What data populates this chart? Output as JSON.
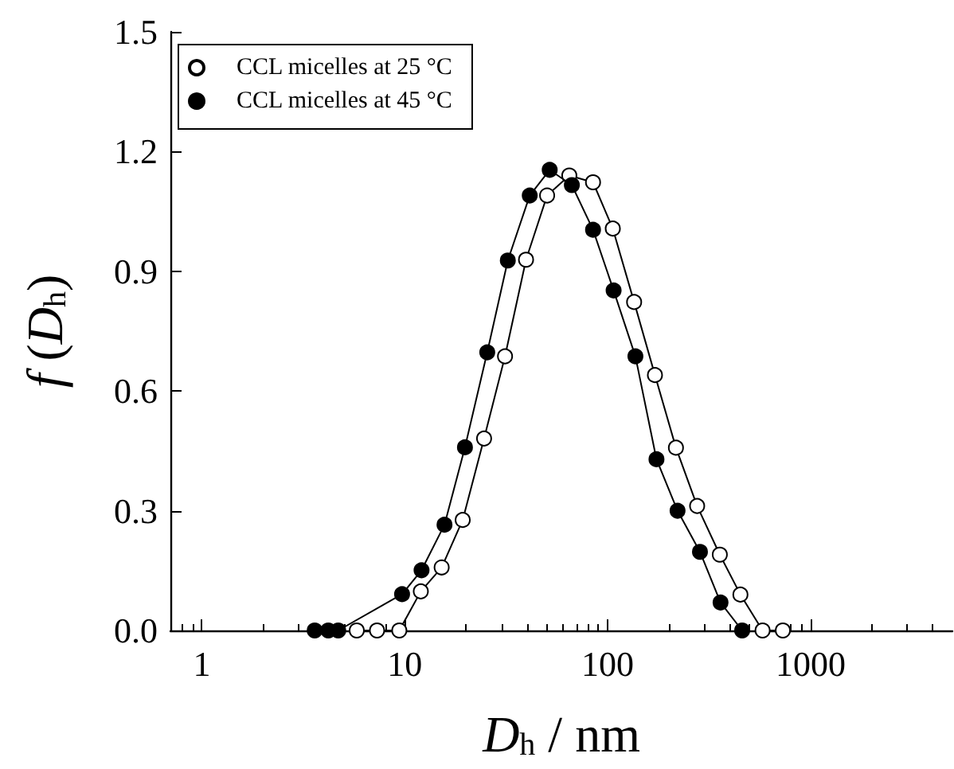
{
  "chart_data": {
    "type": "line",
    "xlabel": "D$_{h}$ / nm",
    "ylabel": "f (D$_{h}$)",
    "log": "x",
    "xlim": [
      0.7,
      5000
    ],
    "xticks": [
      1,
      10,
      100,
      1000
    ],
    "ylim": [
      0,
      1.5
    ],
    "yticks": [
      {
        "value": 0,
        "label": "0.0"
      },
      {
        "value": 0.3,
        "label": "0.3"
      },
      {
        "value": 0.6,
        "label": "0.6"
      },
      {
        "value": 0.9,
        "label": "0.9"
      },
      {
        "value": 1.2,
        "label": "1.2"
      },
      {
        "value": 1.5,
        "label": "1.5"
      }
    ],
    "grid": false,
    "legend": "top left",
    "marker": "circle",
    "line_style": "solid",
    "series": [
      {
        "name": "CCL micelles at 25 °C",
        "color": "#ffffff",
        "x": [
          5.8,
          7.3,
          9.4,
          12.0,
          15.2,
          19.3,
          24.6,
          31.2,
          39.6,
          50.3,
          64.7,
          84.7,
          106,
          135,
          171,
          217,
          276,
          357,
          451,
          580,
          730
        ],
        "values": [
          0,
          0,
          0,
          0.098,
          0.158,
          0.277,
          0.481,
          0.687,
          0.929,
          1.09,
          1.14,
          1.123,
          1.007,
          0.823,
          0.64,
          0.458,
          0.312,
          0.19,
          0.09,
          0,
          0
        ]
      },
      {
        "name": "CCL micelles at 45 °C",
        "color": "#000000",
        "x": [
          3.6,
          4.2,
          4.7,
          9.7,
          12.1,
          15.7,
          19.8,
          25.5,
          32.2,
          41.3,
          51.8,
          66.6,
          84.7,
          107,
          137,
          174,
          221,
          285,
          360,
          460
        ],
        "values": [
          0,
          0,
          0,
          0.091,
          0.151,
          0.265,
          0.459,
          0.697,
          0.927,
          1.09,
          1.154,
          1.116,
          1.004,
          0.852,
          0.687,
          0.429,
          0.3,
          0.197,
          0.07,
          0
        ]
      }
    ]
  }
}
